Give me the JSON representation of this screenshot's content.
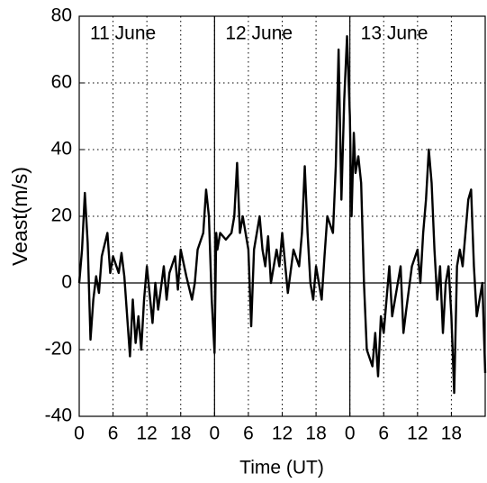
{
  "chart_data": {
    "type": "line",
    "x_label": "Time (UT)",
    "y_label": "Veast(m/s)",
    "annotations": [
      "11 June",
      "12 June",
      "13 June"
    ],
    "day_boundaries": [
      24,
      48
    ],
    "color": "#000000",
    "grid": true,
    "xlim": [
      0,
      72
    ],
    "ylim": [
      -40,
      80
    ],
    "xticks": [
      0,
      6,
      12,
      18,
      {
        "value": 24,
        "label": "0"
      },
      {
        "value": 30,
        "label": "6"
      },
      {
        "value": 36,
        "label": "12"
      },
      {
        "value": 42,
        "label": "18"
      },
      {
        "value": 48,
        "label": "0"
      },
      {
        "value": 54,
        "label": "6"
      },
      {
        "value": 60,
        "label": "12"
      },
      {
        "value": 66,
        "label": "18"
      }
    ],
    "yticks": [
      -40,
      -20,
      0,
      20,
      40,
      60,
      80
    ],
    "x": [
      0,
      0.5,
      1,
      1.5,
      2,
      2.5,
      3,
      3.5,
      4,
      5,
      5.5,
      6,
      7,
      7.5,
      8,
      9,
      9.5,
      10,
      10.5,
      11,
      11.5,
      12,
      13,
      13.5,
      14,
      15,
      15.5,
      16,
      17,
      17.5,
      18,
      19,
      20,
      20.5,
      21,
      22,
      22.5,
      23,
      23.5,
      24,
      24.3,
      24.5,
      25,
      26,
      27,
      27.5,
      28,
      28.5,
      29,
      30,
      30.5,
      31,
      32,
      32.5,
      33,
      33.5,
      34,
      35,
      35.5,
      36,
      37,
      38,
      39,
      39.5,
      40,
      40.5,
      41,
      41.5,
      42,
      43,
      43.5,
      44,
      45,
      45.5,
      46,
      46.5,
      47,
      47.5,
      48,
      48.3,
      48.7,
      49,
      49.5,
      50,
      50.5,
      51,
      52,
      52.5,
      53,
      53.5,
      54,
      55,
      55.5,
      56,
      57,
      57.5,
      58,
      59,
      60,
      60.5,
      61,
      61.5,
      62,
      62.5,
      63,
      63.5,
      64,
      64.5,
      65,
      65.5,
      66,
      66.5,
      67,
      67.5,
      68,
      68.5,
      69,
      69.5,
      70,
      70.5,
      71,
      71.5,
      72
    ],
    "values": [
      0,
      10,
      27,
      12,
      -17,
      -5,
      2,
      -3,
      8,
      15,
      3,
      8,
      3,
      9,
      2,
      -22,
      -5,
      -18,
      -10,
      -20,
      -5,
      5,
      -12,
      0,
      -8,
      5,
      -5,
      3,
      8,
      -2,
      10,
      2,
      -5,
      0,
      10,
      15,
      28,
      20,
      -5,
      -21,
      15,
      10,
      15,
      13,
      15,
      20,
      36,
      15,
      20,
      10,
      -13,
      10,
      20,
      10,
      5,
      14,
      0,
      10,
      5,
      15,
      -3,
      10,
      5,
      15,
      35,
      15,
      0,
      -5,
      5,
      -5,
      8,
      20,
      15,
      35,
      70,
      25,
      55,
      74,
      50,
      20,
      45,
      33,
      38,
      30,
      0,
      -20,
      -25,
      -15,
      -28,
      -10,
      -15,
      5,
      -10,
      -5,
      5,
      -15,
      -8,
      5,
      10,
      0,
      15,
      25,
      40,
      30,
      10,
      -5,
      5,
      -15,
      0,
      5,
      -10,
      -33,
      5,
      10,
      5,
      15,
      25,
      28,
      5,
      -10,
      -5,
      0,
      -27
    ]
  }
}
